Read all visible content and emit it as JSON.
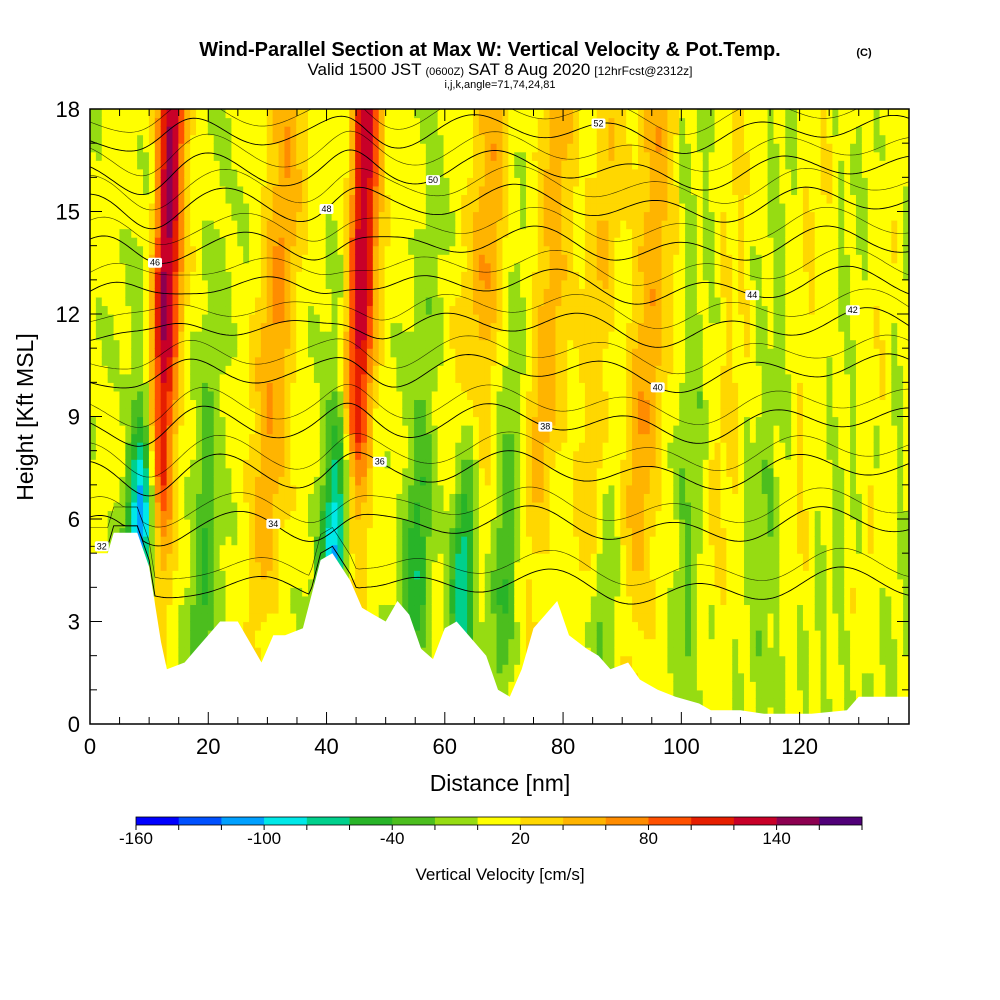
{
  "header": {
    "title": "Wind-Parallel Section at Max W: Vertical Velocity & Pot.Temp.",
    "copyright": "(C)",
    "valid_a": "Valid 1500 JST",
    "valid_b": "(0600Z)",
    "valid_c": "SAT 8 Aug 2020",
    "valid_d": "[12hrFcst@2312z]",
    "indices": "i,j,k,angle=71,74,24,81"
  },
  "chart_data": {
    "type": "heatmap",
    "xlabel": "Distance [nm]",
    "ylabel": "Height [Kft MSL]",
    "xlim": [
      0,
      138.5
    ],
    "ylim": [
      0,
      18
    ],
    "x_ticks": [
      "0",
      "20",
      "40",
      "60",
      "80",
      "100",
      "120"
    ],
    "y_ticks": [
      "0",
      "3",
      "6",
      "9",
      "12",
      "15",
      "18"
    ],
    "colorbar": {
      "label": "Vertical Velocity [cm/s]",
      "range": [
        -160,
        180
      ],
      "step": 20,
      "tick_labels": [
        "-160",
        "-100",
        "-40",
        "20",
        "80",
        "140"
      ],
      "colors": [
        "#0000ff",
        "#0050ff",
        "#00a0ff",
        "#00e8e8",
        "#00d08c",
        "#28b428",
        "#4cbe1e",
        "#96dc12",
        "#ffff00",
        "#ffd700",
        "#ffb400",
        "#ff8c00",
        "#ff5000",
        "#e61e00",
        "#c80028",
        "#8c0050",
        "#500078"
      ]
    },
    "vertical_velocity_axes": [
      {
        "x": 11,
        "peak": 150
      },
      {
        "x": 29,
        "peak": 55
      },
      {
        "x": 44,
        "peak": 140
      },
      {
        "x": 63,
        "peak": 70
      },
      {
        "x": 75,
        "peak": 45
      },
      {
        "x": 84,
        "peak": 35
      },
      {
        "x": 92,
        "peak": 50
      },
      {
        "x": 106,
        "peak": 35
      },
      {
        "x": 119,
        "peak": 25
      },
      {
        "x": 131,
        "peak": 20
      }
    ],
    "downdraft_axes": [
      {
        "x": 8,
        "min": -110
      },
      {
        "x": 19,
        "min": -40
      },
      {
        "x": 41,
        "min": -95
      },
      {
        "x": 55,
        "min": -50
      },
      {
        "x": 63,
        "min": -100
      },
      {
        "x": 70,
        "min": -40
      },
      {
        "x": 87,
        "min": -30
      },
      {
        "x": 101,
        "min": -25
      },
      {
        "x": 114,
        "min": -20
      }
    ],
    "terrain_kft": [
      [
        0,
        5.0
      ],
      [
        3,
        5.0
      ],
      [
        4,
        5.6
      ],
      [
        8,
        5.6
      ],
      [
        10,
        4.6
      ],
      [
        12,
        2.4
      ],
      [
        13,
        1.6
      ],
      [
        16,
        1.8
      ],
      [
        18,
        2.2
      ],
      [
        22,
        3.0
      ],
      [
        25,
        3.0
      ],
      [
        27,
        2.4
      ],
      [
        29,
        1.8
      ],
      [
        31,
        2.6
      ],
      [
        33,
        2.6
      ],
      [
        36,
        2.8
      ],
      [
        39,
        4.8
      ],
      [
        41,
        5.0
      ],
      [
        44,
        4.2
      ],
      [
        46,
        3.4
      ],
      [
        48,
        3.2
      ],
      [
        50,
        3.0
      ],
      [
        52,
        3.6
      ],
      [
        54,
        3.2
      ],
      [
        56,
        2.2
      ],
      [
        58,
        1.9
      ],
      [
        60,
        2.8
      ],
      [
        62,
        3.0
      ],
      [
        64,
        2.6
      ],
      [
        67,
        2.0
      ],
      [
        69,
        1.0
      ],
      [
        71,
        0.8
      ],
      [
        73,
        1.6
      ],
      [
        75,
        2.8
      ],
      [
        77,
        3.2
      ],
      [
        79,
        3.6
      ],
      [
        81,
        2.6
      ],
      [
        84,
        2.2
      ],
      [
        86,
        2.0
      ],
      [
        88,
        1.6
      ],
      [
        91,
        1.8
      ],
      [
        93,
        1.3
      ],
      [
        96,
        1.0
      ],
      [
        99,
        0.8
      ],
      [
        103,
        0.6
      ],
      [
        105,
        0.4
      ],
      [
        110,
        0.4
      ],
      [
        114,
        0.3
      ],
      [
        122,
        0.3
      ],
      [
        128,
        0.4
      ],
      [
        130,
        0.8
      ],
      [
        136,
        0.8
      ],
      [
        138.5,
        0.8
      ]
    ],
    "theta_contours": [
      {
        "label": "32",
        "base": 4.0
      },
      {
        "label": "34",
        "base": 5.8
      },
      {
        "label": "36",
        "base": 7.4
      },
      {
        "label": "38",
        "base": 8.8
      },
      {
        "label": "40",
        "base": 10.3
      },
      {
        "label": "42",
        "base": 11.6
      },
      {
        "label": "44",
        "base": 12.8
      },
      {
        "label": "46",
        "base": 14.0
      },
      {
        "label": "48",
        "base": 15.2
      },
      {
        "label": "50",
        "base": 16.2
      },
      {
        "label": "52",
        "base": 17.3
      }
    ]
  }
}
